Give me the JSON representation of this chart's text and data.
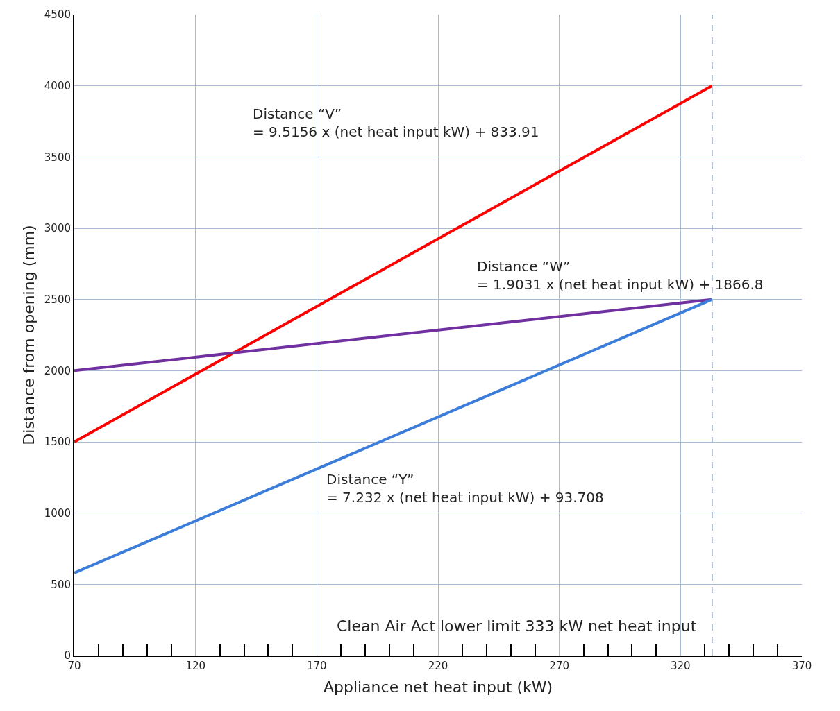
{
  "chart_data": {
    "type": "line",
    "xlabel": "Appliance net heat input (kW)",
    "ylabel": "Distance from opening (mm)",
    "series": [
      {
        "color": "#ff0000",
        "values": [
          1500,
          4000
        ]
      },
      {
        "color": "#7030a0",
        "values": [
          2000,
          2500
        ]
      },
      {
        "color": "#3c7dd9",
        "values": [
          580,
          2500
        ]
      }
    ],
    "x": [
      70,
      333
    ],
    "xlim": [
      70,
      370
    ],
    "xticks": [
      70,
      {
        "value": 80,
        "label": null
      },
      {
        "value": 90,
        "label": null
      },
      {
        "value": 100,
        "label": null
      },
      {
        "value": 110,
        "label": null
      },
      120,
      {
        "value": 130,
        "label": null
      },
      {
        "value": 140,
        "label": null
      },
      {
        "value": 150,
        "label": null
      },
      {
        "value": 160,
        "label": null
      },
      170,
      {
        "value": 180,
        "label": null
      },
      {
        "value": 190,
        "label": null
      },
      {
        "value": 200,
        "label": null
      },
      {
        "value": 210,
        "label": null
      },
      220,
      {
        "value": 230,
        "label": null
      },
      {
        "value": 240,
        "label": null
      },
      {
        "value": 250,
        "label": null
      },
      {
        "value": 260,
        "label": null
      },
      270,
      {
        "value": 280,
        "label": null
      },
      {
        "value": 290,
        "label": null
      },
      {
        "value": 300,
        "label": null
      },
      {
        "value": 310,
        "label": null
      },
      320,
      {
        "value": 330,
        "label": null
      },
      {
        "value": 340,
        "label": null
      },
      {
        "value": 350,
        "label": null
      },
      {
        "value": 360,
        "label": null
      },
      370
    ],
    "ylim": [
      0,
      4500
    ],
    "yticks": [
      0,
      500,
      1000,
      1500,
      2000,
      2500,
      3000,
      3500,
      4000,
      4500
    ],
    "grid": true,
    "line_style": "solid",
    "marker": "none",
    "ref_lines": [
      {
        "axis": "x",
        "value": 333,
        "label": "Clean Air Act lower limit 333 kW net heat input",
        "color": "#6f8fbf",
        "line_style": "dashed"
      }
    ],
    "annotations": [
      "Distance “V”\n= 9.5156 x (net heat input kW) + 833.91",
      "Distance “W”\n= 1.9031 x (net heat input kW) + 1866.8",
      "Distance “Y”\n= 7.232 x (net heat input kW) + 93.708"
    ]
  }
}
